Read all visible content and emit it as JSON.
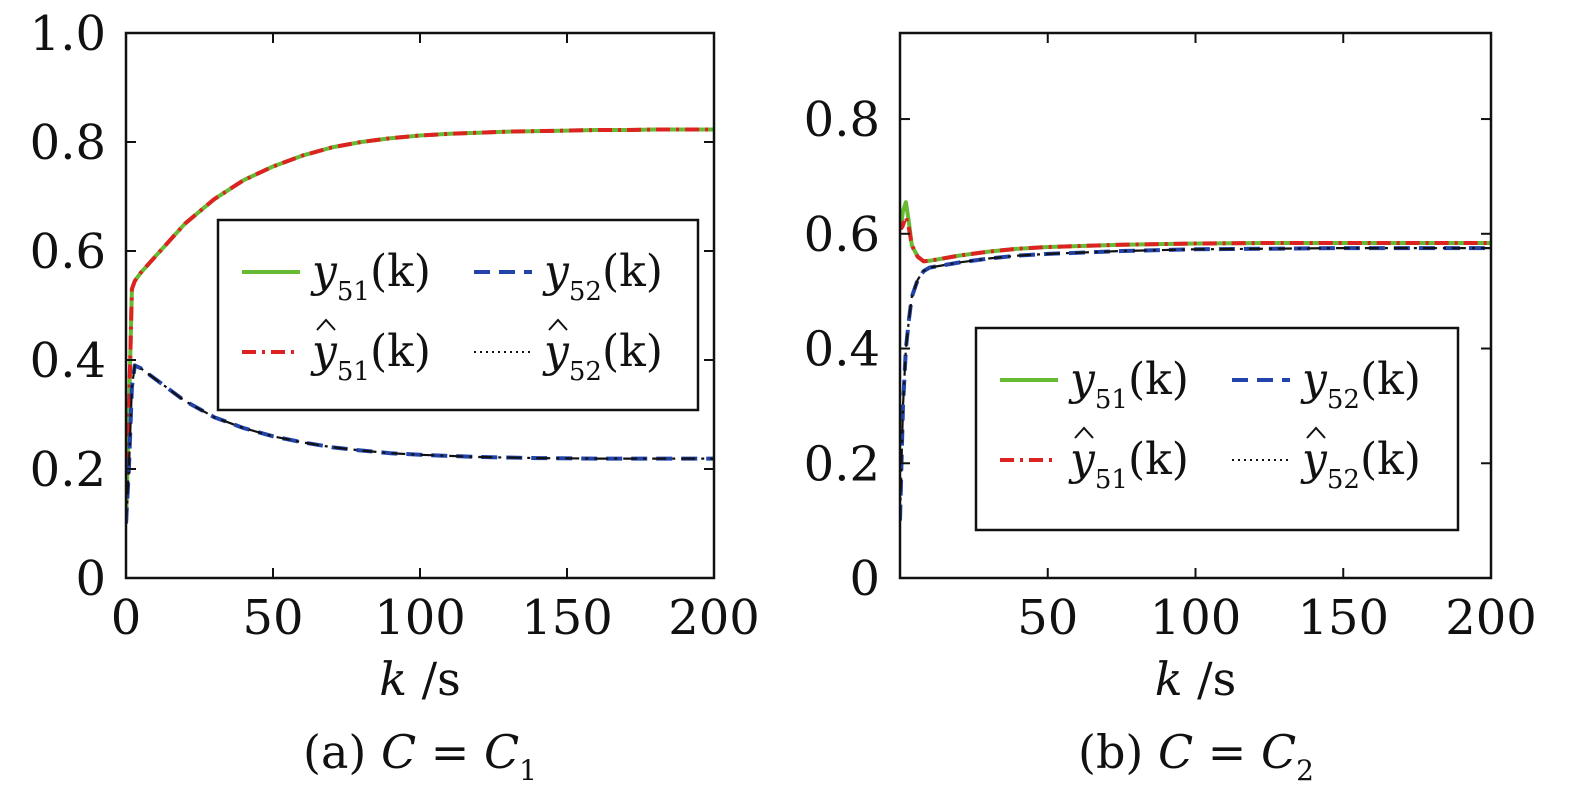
{
  "colors": {
    "y51": "#66bb33",
    "yhat51": "#dd2222",
    "y52": "#2244aa",
    "yhat52": "#111111"
  },
  "chart_data": [
    {
      "type": "line",
      "caption": "(a)  C = C1",
      "caption_parts": {
        "prefix": "(a)",
        "var": "C",
        "eq": "=",
        "rhs": "C",
        "sub": "1"
      },
      "xlabel": "k /s",
      "xlabel_parts": {
        "var": "k",
        "unit": "/s"
      },
      "xlim": [
        0,
        200
      ],
      "ylim": [
        0,
        1.0
      ],
      "xticks": [
        "0",
        "50",
        "100",
        "150",
        "200"
      ],
      "yticks": [
        "0",
        "0.2",
        "0.4",
        "0.6",
        "0.8",
        "1.0"
      ],
      "legend_position": "center-right",
      "legend": [
        {
          "name": "y51(k)",
          "var": "y",
          "hat": false,
          "sub": "51",
          "arg": "(k)"
        },
        {
          "name": "y52(k)",
          "var": "y",
          "hat": false,
          "sub": "52",
          "arg": "(k)"
        },
        {
          "name": "ŷ51(k)",
          "var": "y",
          "hat": true,
          "sub": "51",
          "arg": "(k)"
        },
        {
          "name": "ŷ52(k)",
          "var": "y",
          "hat": true,
          "sub": "52",
          "arg": "(k)"
        }
      ],
      "series": [
        {
          "name": "y51(k)",
          "style": "solid",
          "color_key": "y51",
          "x": [
            0,
            1,
            2,
            3,
            5,
            10,
            20,
            30,
            40,
            50,
            60,
            70,
            80,
            90,
            100,
            110,
            120,
            130,
            140,
            150,
            160,
            170,
            180,
            190,
            200
          ],
          "y": [
            0.1,
            0.3,
            0.53,
            0.545,
            0.56,
            0.59,
            0.65,
            0.695,
            0.73,
            0.755,
            0.775,
            0.79,
            0.8,
            0.807,
            0.812,
            0.815,
            0.817,
            0.819,
            0.82,
            0.821,
            0.822,
            0.822,
            0.823,
            0.823,
            0.823
          ]
        },
        {
          "name": "ŷ51(k)",
          "style": "dashdot",
          "color_key": "yhat51",
          "x": [
            0,
            1,
            2,
            3,
            5,
            10,
            20,
            30,
            40,
            50,
            60,
            70,
            80,
            90,
            100,
            110,
            120,
            130,
            140,
            150,
            160,
            170,
            180,
            190,
            200
          ],
          "y": [
            0.1,
            0.3,
            0.53,
            0.545,
            0.56,
            0.59,
            0.65,
            0.695,
            0.73,
            0.755,
            0.775,
            0.79,
            0.8,
            0.807,
            0.812,
            0.815,
            0.817,
            0.819,
            0.82,
            0.821,
            0.822,
            0.822,
            0.823,
            0.823,
            0.823
          ]
        },
        {
          "name": "y52(k)",
          "style": "dashed",
          "color_key": "y52",
          "x": [
            0,
            1,
            2,
            3,
            5,
            10,
            20,
            30,
            40,
            50,
            60,
            70,
            80,
            90,
            100,
            120,
            140,
            160,
            180,
            200
          ],
          "y": [
            0.1,
            0.2,
            0.35,
            0.39,
            0.385,
            0.365,
            0.325,
            0.295,
            0.275,
            0.26,
            0.249,
            0.24,
            0.234,
            0.229,
            0.226,
            0.222,
            0.22,
            0.219,
            0.219,
            0.219
          ]
        },
        {
          "name": "ŷ52(k)",
          "style": "dashdot",
          "color_key": "yhat52",
          "x": [
            0,
            1,
            2,
            3,
            5,
            10,
            20,
            30,
            40,
            50,
            60,
            70,
            80,
            90,
            100,
            120,
            140,
            160,
            180,
            200
          ],
          "y": [
            0.1,
            0.2,
            0.35,
            0.39,
            0.385,
            0.365,
            0.325,
            0.295,
            0.275,
            0.26,
            0.249,
            0.24,
            0.234,
            0.229,
            0.226,
            0.222,
            0.22,
            0.219,
            0.219,
            0.219
          ]
        }
      ]
    },
    {
      "type": "line",
      "caption": "(b)  C = C2",
      "caption_parts": {
        "prefix": "(b)",
        "var": "C",
        "eq": "=",
        "rhs": "C",
        "sub": "2"
      },
      "xlabel": "k /s",
      "xlabel_parts": {
        "var": "k",
        "unit": "/s"
      },
      "xlim": [
        0,
        200
      ],
      "ylim": [
        0,
        0.95
      ],
      "xticks": [
        "50",
        "100",
        "150",
        "200"
      ],
      "yticks": [
        "0",
        "0.2",
        "0.4",
        "0.6",
        "0.8"
      ],
      "legend_position": "lower-right",
      "legend": [
        {
          "name": "y51(k)",
          "var": "y",
          "hat": false,
          "sub": "51",
          "arg": "(k)"
        },
        {
          "name": "y52(k)",
          "var": "y",
          "hat": false,
          "sub": "52",
          "arg": "(k)"
        },
        {
          "name": "ŷ51(k)",
          "var": "y",
          "hat": true,
          "sub": "51",
          "arg": "(k)"
        },
        {
          "name": "ŷ52(k)",
          "var": "y",
          "hat": true,
          "sub": "52",
          "arg": "(k)"
        }
      ],
      "series": [
        {
          "name": "y51(k)",
          "style": "solid",
          "color_key": "y51",
          "x": [
            0,
            0.5,
            1,
            2,
            3,
            4,
            6,
            8,
            10,
            20,
            30,
            40,
            50,
            75,
            100,
            125,
            150,
            175,
            200
          ],
          "y": [
            0.62,
            0.62,
            0.64,
            0.655,
            0.62,
            0.58,
            0.56,
            0.552,
            0.553,
            0.562,
            0.569,
            0.574,
            0.577,
            0.581,
            0.583,
            0.584,
            0.584,
            0.584,
            0.584
          ]
        },
        {
          "name": "ŷ51(k)",
          "style": "dashdot",
          "color_key": "yhat51",
          "x": [
            0,
            0.5,
            1,
            2,
            3,
            4,
            6,
            8,
            10,
            20,
            30,
            40,
            50,
            75,
            100,
            125,
            150,
            175,
            200
          ],
          "y": [
            0.62,
            0.61,
            0.615,
            0.63,
            0.61,
            0.58,
            0.56,
            0.552,
            0.553,
            0.562,
            0.569,
            0.574,
            0.577,
            0.581,
            0.583,
            0.584,
            0.584,
            0.584,
            0.584
          ]
        },
        {
          "name": "y52(k)",
          "style": "dashed",
          "color_key": "y52",
          "x": [
            0,
            0.5,
            1,
            2,
            3,
            4,
            6,
            8,
            10,
            20,
            30,
            40,
            50,
            75,
            100,
            125,
            150,
            175,
            200
          ],
          "y": [
            0.1,
            0.2,
            0.3,
            0.4,
            0.45,
            0.49,
            0.52,
            0.535,
            0.541,
            0.55,
            0.557,
            0.562,
            0.565,
            0.57,
            0.573,
            0.574,
            0.575,
            0.575,
            0.575
          ]
        },
        {
          "name": "ŷ52(k)",
          "style": "dashdot",
          "color_key": "yhat52",
          "x": [
            0,
            0.5,
            1,
            2,
            3,
            4,
            6,
            8,
            10,
            20,
            30,
            40,
            50,
            75,
            100,
            125,
            150,
            175,
            200
          ],
          "y": [
            0.1,
            0.2,
            0.3,
            0.4,
            0.45,
            0.49,
            0.52,
            0.535,
            0.541,
            0.55,
            0.557,
            0.562,
            0.565,
            0.57,
            0.573,
            0.574,
            0.575,
            0.575,
            0.575
          ]
        }
      ]
    }
  ]
}
